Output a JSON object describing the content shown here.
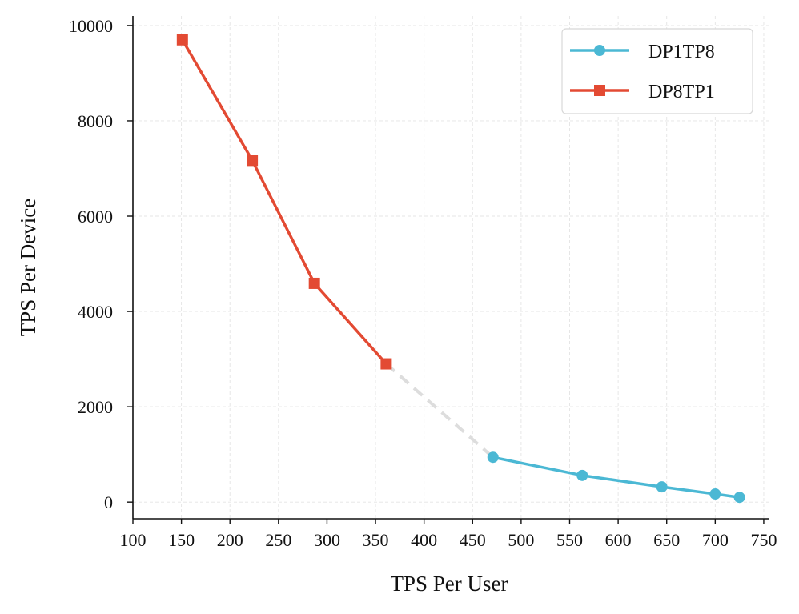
{
  "chart_data": {
    "type": "line",
    "title": "",
    "xlabel": "TPS Per User",
    "ylabel": "TPS Per Device",
    "xlim": [
      100,
      755
    ],
    "ylim": [
      -350,
      10200
    ],
    "xticks": [
      100,
      150,
      200,
      250,
      300,
      350,
      400,
      450,
      500,
      550,
      600,
      650,
      700,
      750
    ],
    "yticks": [
      0,
      2000,
      4000,
      6000,
      8000,
      10000
    ],
    "grid": true,
    "legend_position": "top-right",
    "series": [
      {
        "name": "DP1TP8",
        "color": "#4bb8d4",
        "marker": "circle",
        "x": [
          471,
          563,
          645,
          700,
          725
        ],
        "y": [
          940,
          560,
          320,
          170,
          100
        ]
      },
      {
        "name": "DP8TP1",
        "color": "#e34a33",
        "marker": "square",
        "x": [
          151,
          223,
          287,
          361
        ],
        "y": [
          9700,
          7170,
          4590,
          2900
        ]
      }
    ],
    "connector": {
      "style": "dashed",
      "color": "#dddddd",
      "from": [
        361,
        2900
      ],
      "to": [
        471,
        940
      ]
    }
  }
}
